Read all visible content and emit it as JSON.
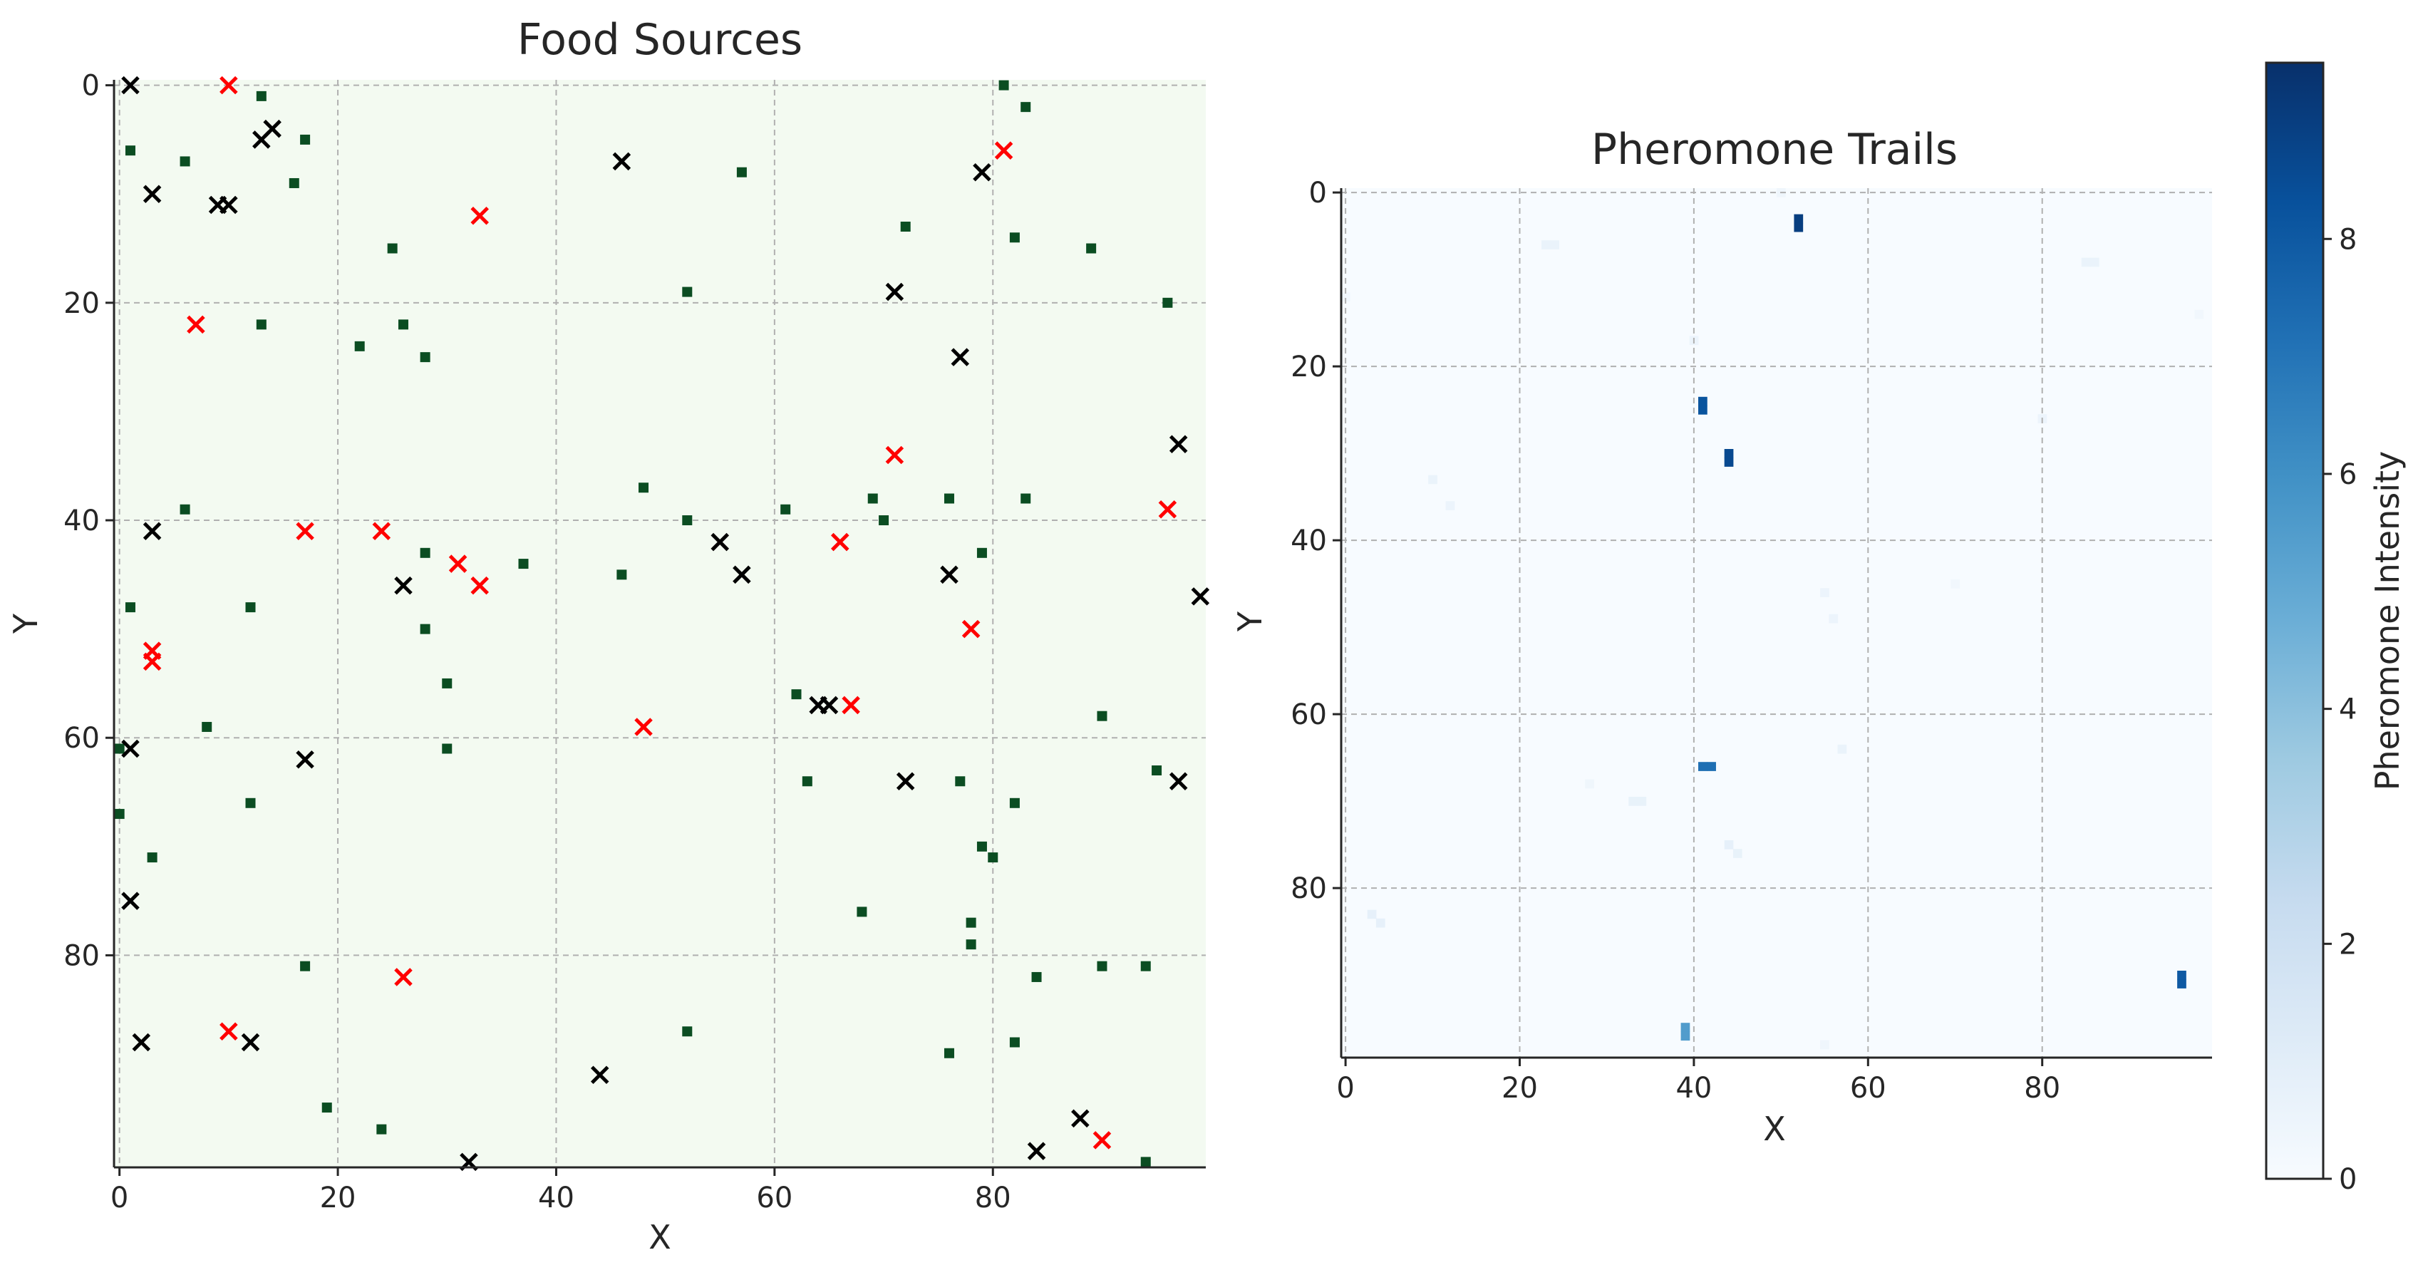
{
  "chart_data": [
    {
      "type": "scatter",
      "title": "Food Sources",
      "xlabel": "X",
      "ylabel": "Y",
      "xlim": [
        -0.5,
        99.5
      ],
      "ylim": [
        99.5,
        -0.5
      ],
      "xticks": [
        0,
        20,
        40,
        60,
        80
      ],
      "yticks": [
        0,
        20,
        40,
        60,
        80
      ],
      "grid": true,
      "background_color": "#f3faf1",
      "series": [
        {
          "marker": "square",
          "color": "#0b4d22",
          "points": [
            [
              1,
              6
            ],
            [
              6,
              7
            ],
            [
              13,
              1
            ],
            [
              16,
              9
            ],
            [
              17,
              5
            ],
            [
              13,
              22
            ],
            [
              22,
              24
            ],
            [
              25,
              15
            ],
            [
              26,
              22
            ],
            [
              28,
              25
            ],
            [
              6,
              39
            ],
            [
              1,
              48
            ],
            [
              12,
              48
            ],
            [
              28,
              43
            ],
            [
              28,
              50
            ],
            [
              30,
              55
            ],
            [
              30,
              61
            ],
            [
              37,
              44
            ],
            [
              46,
              45
            ],
            [
              48,
              37
            ],
            [
              52,
              19
            ],
            [
              52,
              40
            ],
            [
              57,
              8
            ],
            [
              61,
              39
            ],
            [
              62,
              56
            ],
            [
              63,
              64
            ],
            [
              69,
              38
            ],
            [
              70,
              40
            ],
            [
              72,
              13
            ],
            [
              76,
              38
            ],
            [
              79,
              43
            ],
            [
              77,
              64
            ],
            [
              79,
              70
            ],
            [
              80,
              71
            ],
            [
              82,
              14
            ],
            [
              82,
              66
            ],
            [
              83,
              2
            ],
            [
              83,
              38
            ],
            [
              81,
              0
            ],
            [
              89,
              15
            ],
            [
              90,
              58
            ],
            [
              95,
              63
            ],
            [
              96,
              20
            ],
            [
              0,
              61
            ],
            [
              0,
              67
            ],
            [
              3,
              71
            ],
            [
              8,
              59
            ],
            [
              12,
              66
            ],
            [
              17,
              81
            ],
            [
              19,
              94
            ],
            [
              24,
              96
            ],
            [
              52,
              87
            ],
            [
              68,
              76
            ],
            [
              76,
              89
            ],
            [
              78,
              77
            ],
            [
              78,
              79
            ],
            [
              82,
              88
            ],
            [
              84,
              82
            ],
            [
              90,
              81
            ],
            [
              94,
              81
            ],
            [
              94,
              99
            ]
          ]
        },
        {
          "marker": "x",
          "color": "#000000",
          "points": [
            [
              1,
              0
            ],
            [
              3,
              10
            ],
            [
              13,
              5
            ],
            [
              14,
              4
            ],
            [
              9,
              11
            ],
            [
              10,
              11
            ],
            [
              46,
              7
            ],
            [
              71,
              19
            ],
            [
              77,
              25
            ],
            [
              79,
              8
            ],
            [
              97,
              33
            ],
            [
              3,
              41
            ],
            [
              26,
              46
            ],
            [
              55,
              42
            ],
            [
              57,
              45
            ],
            [
              76,
              45
            ],
            [
              99,
              47
            ],
            [
              64,
              57
            ],
            [
              65,
              57
            ],
            [
              72,
              64
            ],
            [
              97,
              64
            ],
            [
              1,
              61
            ],
            [
              17,
              62
            ],
            [
              1,
              75
            ],
            [
              2,
              88
            ],
            [
              12,
              88
            ],
            [
              32,
              99
            ],
            [
              44,
              91
            ],
            [
              84,
              98
            ],
            [
              88,
              95
            ]
          ]
        },
        {
          "marker": "x",
          "color": "#ff0000",
          "points": [
            [
              10,
              0
            ],
            [
              33,
              12
            ],
            [
              7,
              22
            ],
            [
              81,
              6
            ],
            [
              71,
              34
            ],
            [
              96,
              39
            ],
            [
              17,
              41
            ],
            [
              24,
              41
            ],
            [
              31,
              44
            ],
            [
              33,
              46
            ],
            [
              66,
              42
            ],
            [
              78,
              50
            ],
            [
              3,
              52
            ],
            [
              3,
              53
            ],
            [
              48,
              59
            ],
            [
              67,
              57
            ],
            [
              26,
              82
            ],
            [
              10,
              87
            ],
            [
              90,
              97
            ]
          ]
        }
      ]
    },
    {
      "type": "heatmap",
      "title": "Pheromone Trails",
      "xlabel": "X",
      "ylabel": "Y",
      "xlim": [
        -0.5,
        99.5
      ],
      "ylim": [
        99.5,
        -0.5
      ],
      "xticks": [
        0,
        20,
        40,
        60,
        80
      ],
      "yticks": [
        0,
        20,
        40,
        60,
        80
      ],
      "grid": true,
      "colormap": "Blues",
      "vmin": 0,
      "vmax": 9.5,
      "colorbar_label": "Pheromone Intensity",
      "colorbar_ticks": [
        0,
        2,
        4,
        6,
        8
      ],
      "cells": [
        [
          52,
          3,
          9.0
        ],
        [
          52,
          4,
          9.0
        ],
        [
          41,
          24,
          8.2
        ],
        [
          41,
          25,
          8.2
        ],
        [
          44,
          30,
          8.6
        ],
        [
          44,
          31,
          8.6
        ],
        [
          41,
          66,
          7.2
        ],
        [
          42,
          66,
          7.2
        ],
        [
          96,
          90,
          8.0
        ],
        [
          96,
          91,
          8.0
        ],
        [
          39,
          96,
          5.5
        ],
        [
          39,
          97,
          5.5
        ],
        [
          23,
          6,
          0.6
        ],
        [
          24,
          6,
          0.6
        ],
        [
          50,
          0,
          0.4
        ],
        [
          40,
          17,
          0.5
        ],
        [
          10,
          33,
          0.6
        ],
        [
          12,
          36,
          0.5
        ],
        [
          55,
          46,
          0.5
        ],
        [
          56,
          49,
          0.5
        ],
        [
          57,
          64,
          0.6
        ],
        [
          33,
          70,
          0.7
        ],
        [
          34,
          70,
          0.7
        ],
        [
          44,
          75,
          0.8
        ],
        [
          45,
          76,
          0.7
        ],
        [
          3,
          83,
          0.8
        ],
        [
          4,
          84,
          0.8
        ],
        [
          85,
          8,
          0.6
        ],
        [
          86,
          8,
          0.6
        ],
        [
          80,
          26,
          0.5
        ],
        [
          0,
          12,
          0.3
        ],
        [
          98,
          14,
          0.3
        ],
        [
          70,
          45,
          0.3
        ],
        [
          28,
          68,
          0.4
        ],
        [
          55,
          98,
          0.4
        ]
      ]
    }
  ]
}
